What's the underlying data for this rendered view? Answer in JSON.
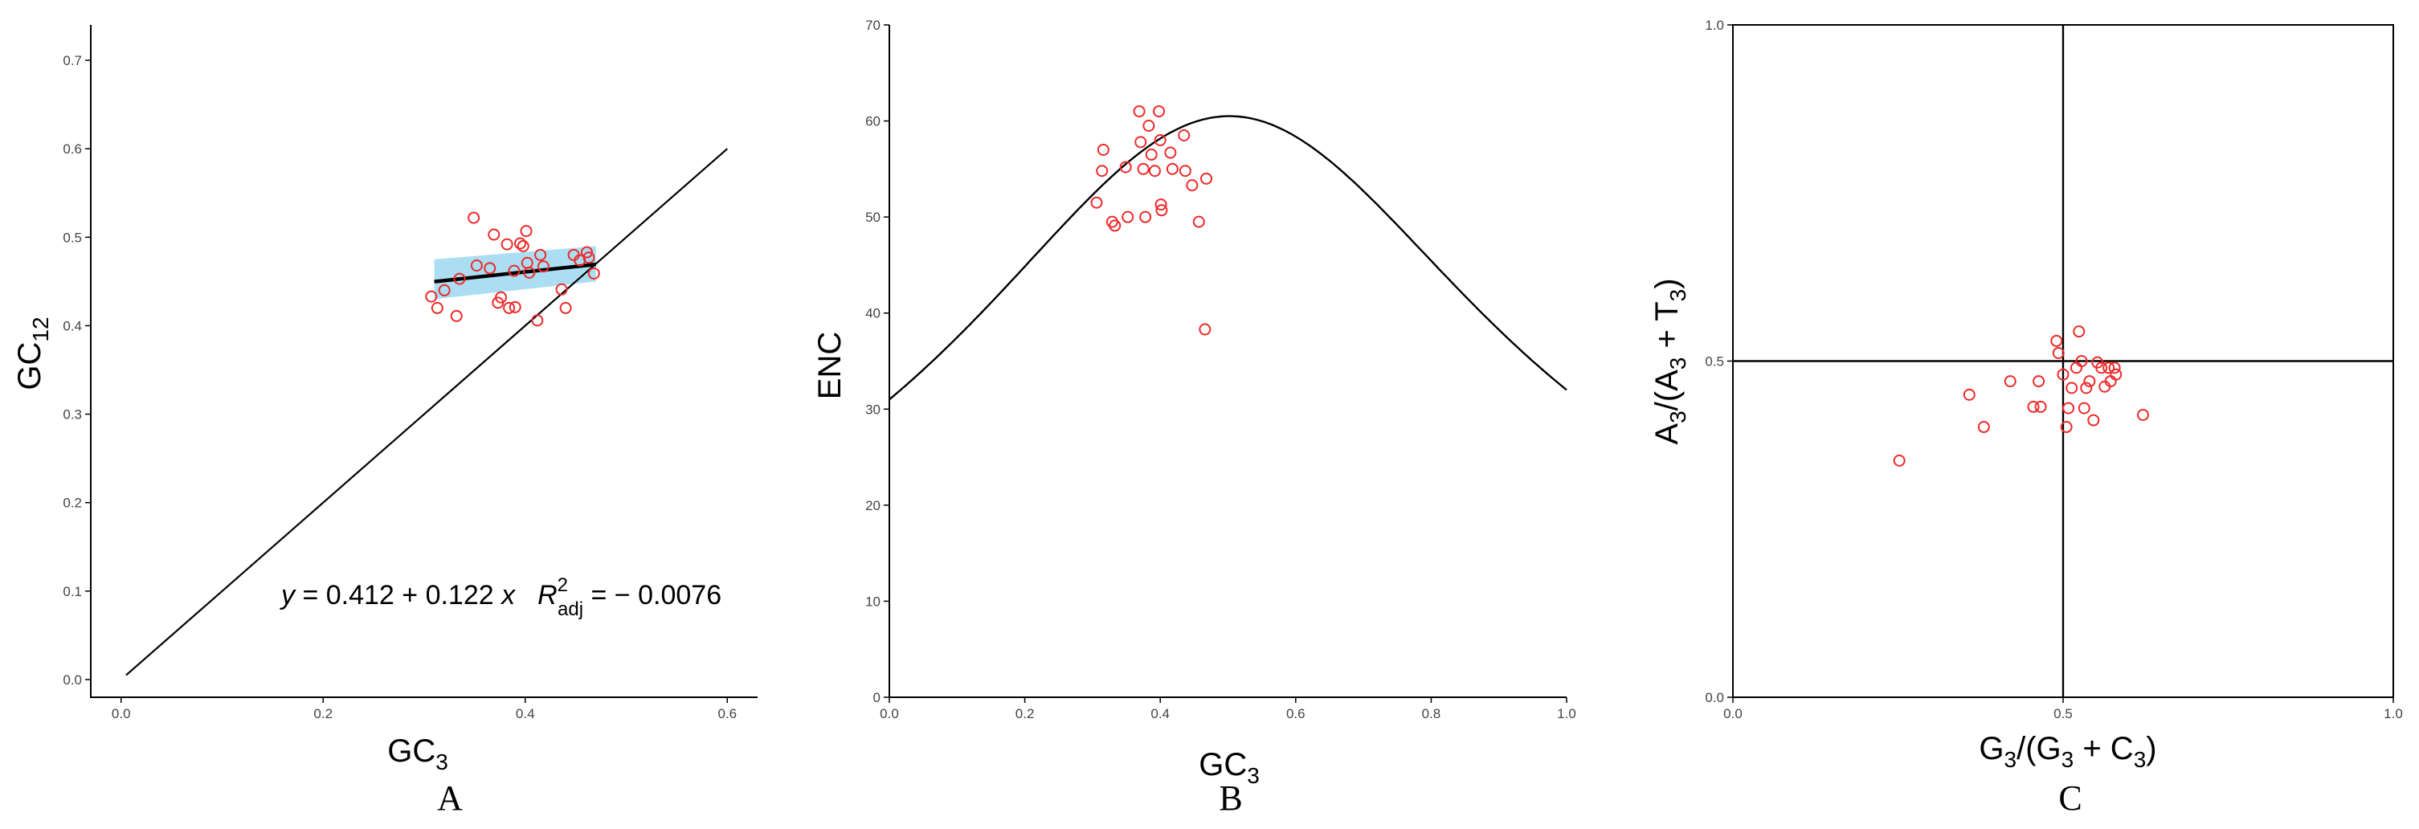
{
  "panels": {
    "A": {
      "letter": "A",
      "xlabel": "GC",
      "xlabel_sub": "3",
      "ylabel": "GC",
      "ylabel_sub": "12",
      "equation": {
        "lhs": "y",
        "rhs": " = 0.412 + 0.122 ",
        "x": "x",
        "r": "R",
        "r_sup": "2",
        "r_sub": "adj",
        "r_value": " = − 0.0076"
      }
    },
    "B": {
      "letter": "B",
      "xlabel": "GC",
      "xlabel_sub": "3",
      "ylabel": "ENC"
    },
    "C": {
      "letter": "C",
      "xlabel": {
        "t1": "G",
        "s1": "3",
        "t2": "/(G",
        "s2": "3",
        "t3": " + C",
        "s3": "3",
        "t4": ")"
      },
      "ylabel": {
        "t1": "A",
        "s1": "3",
        "t2": "/(A",
        "s2": "3",
        "t3": " + T",
        "s3": "3",
        "t4": ")"
      }
    }
  },
  "colors": {
    "point": "#ee2a2a",
    "line": "#000000",
    "band": "#8fd3ef",
    "axis": "#000000"
  },
  "chart_data": [
    {
      "type": "scatter",
      "panel": "A",
      "xlim": [
        -0.03,
        0.63
      ],
      "ylim": [
        -0.02,
        0.74
      ],
      "xticks": [
        "0.0",
        "0.2",
        "0.4",
        "0.6"
      ],
      "xtick_values": [
        0,
        0.2,
        0.4,
        0.6
      ],
      "yticks": [
        "0.0",
        "0.1",
        "0.2",
        "0.3",
        "0.4",
        "0.5",
        "0.6",
        "0.7"
      ],
      "ytick_values": [
        0,
        0.1,
        0.2,
        0.3,
        0.4,
        0.5,
        0.6,
        0.7
      ],
      "reference_line": {
        "x": [
          0.005,
          0.6
        ],
        "y": [
          0.005,
          0.6
        ]
      },
      "regression": {
        "intercept": 0.412,
        "slope": 0.122,
        "r2_adj": -0.0076,
        "x_range": [
          0.31,
          0.47
        ]
      },
      "confidence_band": {
        "x": [
          0.31,
          0.47
        ],
        "lower": [
          0.43,
          0.45
        ],
        "upper": [
          0.475,
          0.49
        ]
      },
      "points": {
        "x": [
          0.307,
          0.313,
          0.32,
          0.332,
          0.335,
          0.349,
          0.352,
          0.365,
          0.369,
          0.373,
          0.376,
          0.382,
          0.384,
          0.389,
          0.39,
          0.395,
          0.398,
          0.401,
          0.402,
          0.404,
          0.412,
          0.415,
          0.418,
          0.436,
          0.44,
          0.448,
          0.454,
          0.461,
          0.463,
          0.468
        ],
        "y": [
          0.433,
          0.42,
          0.44,
          0.411,
          0.453,
          0.522,
          0.468,
          0.465,
          0.503,
          0.426,
          0.432,
          0.492,
          0.42,
          0.462,
          0.421,
          0.493,
          0.49,
          0.507,
          0.471,
          0.46,
          0.406,
          0.48,
          0.467,
          0.441,
          0.42,
          0.48,
          0.474,
          0.483,
          0.477,
          0.459
        ]
      }
    },
    {
      "type": "scatter",
      "panel": "B",
      "xlim": [
        0,
        1
      ],
      "ylim": [
        0,
        70
      ],
      "xticks": [
        "0.0",
        "0.2",
        "0.4",
        "0.6",
        "0.8",
        "1.0"
      ],
      "xtick_values": [
        0,
        0.2,
        0.4,
        0.6,
        0.8,
        1.0
      ],
      "yticks": [
        "0",
        "10",
        "20",
        "30",
        "40",
        "50",
        "60",
        "70"
      ],
      "ytick_values": [
        0,
        10,
        20,
        30,
        40,
        50,
        60,
        70
      ],
      "expected_curve": "ENC = 2 + GC3 + 29 / (GC3^2 + (1 - GC3)^2)",
      "points": {
        "x": [
          0.306,
          0.314,
          0.316,
          0.329,
          0.333,
          0.349,
          0.352,
          0.369,
          0.371,
          0.375,
          0.378,
          0.383,
          0.387,
          0.392,
          0.398,
          0.4,
          0.401,
          0.402,
          0.415,
          0.418,
          0.435,
          0.437,
          0.447,
          0.457,
          0.466,
          0.468
        ],
        "y": [
          51.5,
          54.8,
          57.0,
          49.5,
          49.1,
          55.2,
          50.0,
          61.0,
          57.8,
          55.0,
          50.0,
          59.5,
          56.5,
          54.8,
          61.0,
          58.0,
          51.3,
          50.7,
          56.7,
          55.0,
          58.5,
          54.8,
          53.3,
          49.5,
          38.3,
          54.0
        ]
      }
    },
    {
      "type": "scatter",
      "panel": "C",
      "xlim": [
        0,
        1
      ],
      "ylim": [
        0,
        1
      ],
      "xticks": [
        "0.0",
        "0.5",
        "1.0"
      ],
      "xtick_values": [
        0,
        0.5,
        1.0
      ],
      "yticks": [
        "0.0",
        "0.5",
        "1.0"
      ],
      "ytick_values": [
        0,
        0.5,
        1.0
      ],
      "reference_lines": {
        "x": 0.5,
        "y": 0.5
      },
      "points": {
        "x": [
          0.252,
          0.358,
          0.38,
          0.42,
          0.455,
          0.463,
          0.466,
          0.49,
          0.493,
          0.5,
          0.505,
          0.508,
          0.513,
          0.52,
          0.524,
          0.528,
          0.532,
          0.535,
          0.54,
          0.546,
          0.552,
          0.558,
          0.563,
          0.569,
          0.572,
          0.578,
          0.58,
          0.621
        ],
        "y": [
          0.352,
          0.45,
          0.402,
          0.47,
          0.432,
          0.47,
          0.432,
          0.53,
          0.512,
          0.48,
          0.402,
          0.43,
          0.46,
          0.49,
          0.544,
          0.5,
          0.43,
          0.46,
          0.47,
          0.412,
          0.498,
          0.49,
          0.462,
          0.49,
          0.47,
          0.49,
          0.48,
          0.42
        ]
      }
    }
  ]
}
